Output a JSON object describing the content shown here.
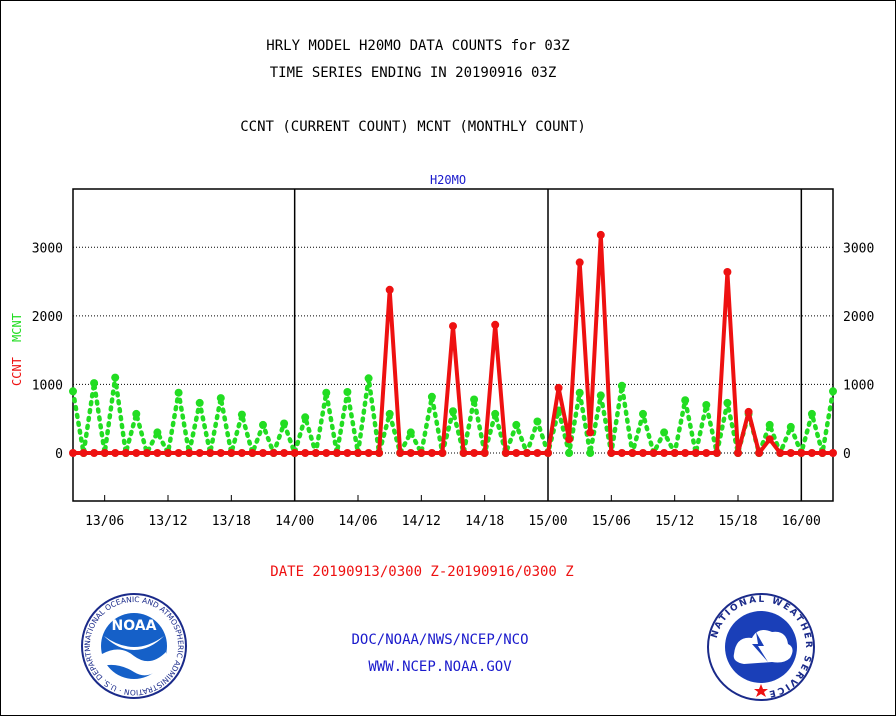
{
  "header": {
    "title_line1": "HRLY MODEL H20MO DATA COUNTS for 03Z",
    "title_line2": "TIME SERIES ENDING IN 20190916 03Z",
    "subtitle": "CCNT (CURRENT COUNT) MCNT (MONTHLY COUNT)"
  },
  "footer": {
    "date_range": "DATE 20190913/0300 Z-20190916/0300 Z",
    "org": "DOC/NOAA/NWS/NCEP/NCO",
    "url": "WWW.NCEP.NOAA.GOV",
    "noaa_logo_text": "NOAA",
    "noaa_ring_text": "NATIONAL OCEANIC AND ATMOSPHERIC ADMINISTRATION · U.S. DEPARTMENT OF COMMERCE",
    "nws_ring_text": "NATIONAL WEATHER SERVICE"
  },
  "colors": {
    "ccnt": "#ee1111",
    "mcnt": "#22dd22",
    "title_blue": "#1a1acc",
    "date_red": "#ee1111"
  },
  "chart_data": {
    "type": "line",
    "title": "H20MO",
    "ylabel_ccnt": "CCNT",
    "ylabel_mcnt": "MCNT",
    "ylim": [
      -700,
      3850
    ],
    "yticks": [
      0,
      1000,
      2000,
      3000
    ],
    "x_hours": {
      "start": 0,
      "end": 72
    },
    "x_tick_labels": [
      "13/06",
      "13/12",
      "13/18",
      "14/00",
      "14/06",
      "14/12",
      "14/18",
      "15/00",
      "15/06",
      "15/12",
      "15/18",
      "16/00"
    ],
    "x_tick_hours": [
      3,
      9,
      15,
      21,
      27,
      33,
      39,
      45,
      51,
      57,
      63,
      69
    ],
    "day_boundary_hours": [
      21,
      45,
      69
    ],
    "grid": true,
    "series": [
      {
        "name": "CCNT",
        "style": "solid",
        "values": [
          0,
          0,
          0,
          0,
          0,
          0,
          0,
          0,
          0,
          0,
          0,
          0,
          0,
          0,
          0,
          0,
          0,
          0,
          0,
          0,
          0,
          0,
          0,
          0,
          0,
          0,
          0,
          0,
          0,
          0,
          2380,
          0,
          0,
          0,
          0,
          0,
          1850,
          0,
          0,
          0,
          1870,
          0,
          0,
          0,
          0,
          0,
          950,
          200,
          2780,
          300,
          3180,
          0,
          0,
          0,
          0,
          0,
          0,
          0,
          0,
          0,
          0,
          0,
          2640,
          0,
          600,
          0,
          200,
          0,
          0,
          0,
          0,
          0,
          0
        ]
      },
      {
        "name": "MCNT",
        "style": "dotted",
        "values": [
          900,
          0,
          1020,
          0,
          1100,
          0,
          570,
          0,
          300,
          0,
          880,
          0,
          730,
          0,
          800,
          0,
          560,
          0,
          410,
          0,
          430,
          0,
          520,
          0,
          880,
          0,
          890,
          0,
          1090,
          0,
          570,
          0,
          300,
          0,
          820,
          0,
          610,
          0,
          780,
          0,
          570,
          0,
          410,
          0,
          460,
          0,
          620,
          0,
          880,
          0,
          840,
          0,
          980,
          0,
          570,
          0,
          300,
          0,
          770,
          0,
          700,
          0,
          730,
          0,
          570,
          0,
          410,
          0,
          380,
          0,
          570,
          0,
          900
        ]
      }
    ]
  }
}
